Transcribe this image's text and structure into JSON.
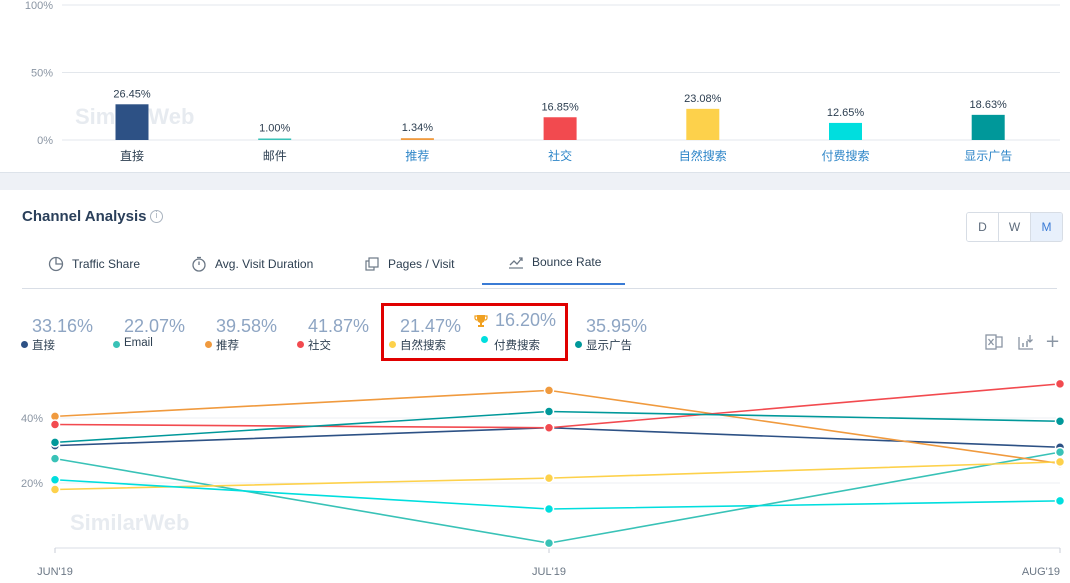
{
  "top_chart": {
    "watermark": "SimilarWeb",
    "chart_data": {
      "type": "bar",
      "y_ticks": [
        "100%",
        "50%",
        "0%"
      ],
      "ylim": [
        0,
        100
      ],
      "categories": [
        "直接",
        "邮件",
        "推荐",
        "社交",
        "自然搜索",
        "付费搜索",
        "显示广告"
      ],
      "values": [
        26.45,
        1.0,
        1.34,
        16.85,
        23.08,
        12.65,
        18.63
      ],
      "value_labels": [
        "26.45%",
        "1.00%",
        "1.34%",
        "16.85%",
        "23.08%",
        "12.65%",
        "18.63%"
      ],
      "colors": [
        "#2d5185",
        "#39c2b7",
        "#f09a3e",
        "#f24a4f",
        "#fdd14b",
        "#00dede",
        "#00989a"
      ],
      "label_colors": [
        "#2c3e50",
        "#2c3e50",
        "#2e86c8",
        "#2e86c8",
        "#2e86c8",
        "#2e86c8",
        "#2e86c8"
      ]
    }
  },
  "channel_analysis": {
    "title": "Channel Analysis",
    "info_icon": "i",
    "periods": [
      "D",
      "W",
      "M"
    ],
    "active_period": "M",
    "tabs": [
      {
        "label": "Traffic Share",
        "icon": "pie-chart-icon"
      },
      {
        "label": "Avg. Visit Duration",
        "icon": "stopwatch-icon"
      },
      {
        "label": "Pages / Visit",
        "icon": "pages-icon"
      },
      {
        "label": "Bounce Rate",
        "icon": "trend-icon"
      }
    ],
    "active_tab": "Bounce Rate",
    "legend": [
      {
        "value": "33.16%",
        "label": "直接",
        "color": "#2d5185"
      },
      {
        "value": "22.07%",
        "label": "Email",
        "color": "#39c2b7"
      },
      {
        "value": "39.58%",
        "label": "推荐",
        "color": "#f09a3e"
      },
      {
        "value": "41.87%",
        "label": "社交",
        "color": "#f24a4f"
      },
      {
        "value": "21.47%",
        "label": "自然搜索",
        "color": "#fdd14b"
      },
      {
        "value": "16.20%",
        "label": "付费搜索",
        "color": "#00dede"
      },
      {
        "value": "35.95%",
        "label": "显示广告",
        "color": "#00989a"
      }
    ],
    "toolbar_icons": [
      "excel-download-icon",
      "add-to-dashboard-icon",
      "plus-icon"
    ],
    "plus_glyph": "+"
  },
  "chart_data": {
    "type": "line",
    "x": [
      "JUN'19",
      "JUL'19",
      "AUG'19"
    ],
    "y_ticks": [
      "40%",
      "20%"
    ],
    "ylim": [
      0,
      55
    ],
    "watermark": "SimilarWeb",
    "series": [
      {
        "name": "直接",
        "color": "#2d5185",
        "values": [
          31.5,
          37,
          31
        ]
      },
      {
        "name": "Email",
        "color": "#39c2b7",
        "values": [
          27.5,
          1.5,
          29.5
        ]
      },
      {
        "name": "推荐",
        "color": "#f09a3e",
        "values": [
          40.5,
          48.5,
          26
        ]
      },
      {
        "name": "社交",
        "color": "#f24a4f",
        "values": [
          38,
          37,
          50.5
        ]
      },
      {
        "name": "自然搜索",
        "color": "#fdd14b",
        "values": [
          18,
          21.5,
          26.5
        ]
      },
      {
        "name": "付费搜索",
        "color": "#00dede",
        "values": [
          21,
          12,
          14.5
        ]
      },
      {
        "name": "显示广告",
        "color": "#00989a",
        "values": [
          32.5,
          42,
          39
        ]
      }
    ]
  }
}
